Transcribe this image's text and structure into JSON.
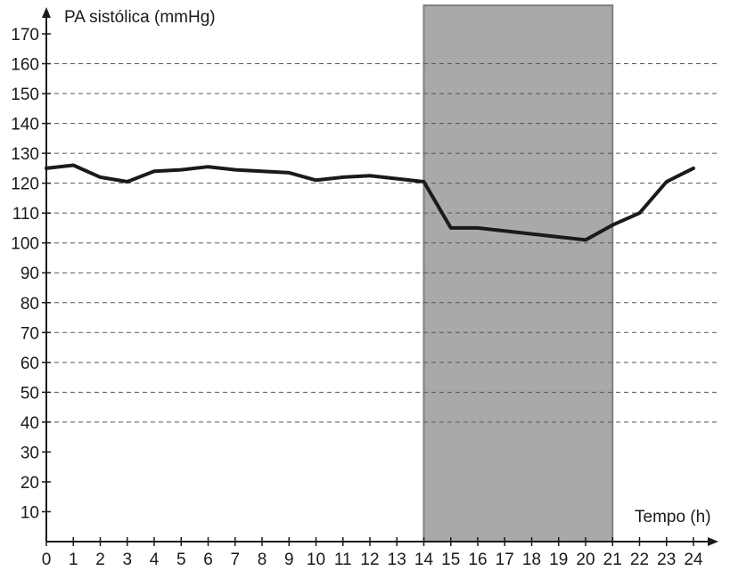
{
  "chart_data": {
    "type": "line",
    "title": "",
    "ylabel": "PA sistólica (mmHg)",
    "xlabel": "Tempo (h)",
    "xlim": [
      0,
      24
    ],
    "ylim": [
      0,
      170
    ],
    "x_ticks": [
      0,
      1,
      2,
      3,
      4,
      5,
      6,
      7,
      8,
      9,
      10,
      11,
      12,
      13,
      14,
      15,
      16,
      17,
      18,
      19,
      20,
      21,
      22,
      23,
      24
    ],
    "y_ticks": [
      10,
      20,
      30,
      40,
      50,
      60,
      70,
      80,
      90,
      100,
      110,
      120,
      130,
      140,
      150,
      160,
      170
    ],
    "dashed_gridlines_y": [
      40,
      50,
      60,
      70,
      80,
      90,
      100,
      110,
      120,
      130,
      140,
      150,
      160
    ],
    "shaded_region": {
      "x_start": 14,
      "x_end": 21,
      "color": "#a7a9ab"
    },
    "series": [
      {
        "color": "#1a1a1a",
        "x": [
          0,
          1,
          2,
          3,
          4,
          5,
          6,
          7,
          8,
          9,
          10,
          11,
          12,
          13,
          14,
          15,
          16,
          17,
          18,
          19,
          20,
          21,
          22,
          23,
          24
        ],
        "y": [
          125,
          126,
          122,
          120.5,
          124,
          124.5,
          125.5,
          124.5,
          124,
          123.5,
          121,
          122,
          122.5,
          121.5,
          120.5,
          105,
          105,
          104,
          103,
          102,
          101,
          106,
          110,
          120.5,
          125
        ]
      }
    ]
  }
}
